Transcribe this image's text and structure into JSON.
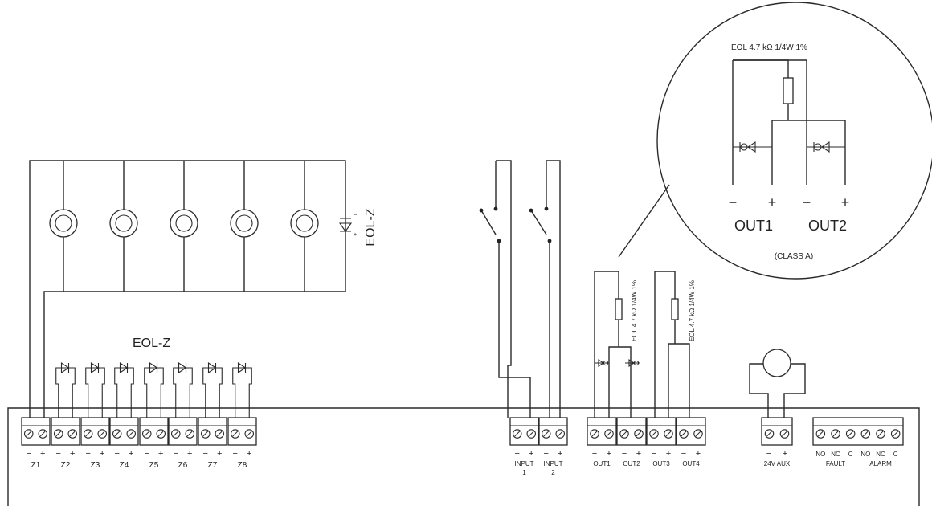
{
  "diagram": {
    "eol_z_top": "EOL-Z",
    "eol_z_bottom": "EOL-Z",
    "minus": "−",
    "plus": "+",
    "zones": [
      "Z1",
      "Z2",
      "Z3",
      "Z4",
      "Z5",
      "Z6",
      "Z7",
      "Z8"
    ],
    "inputs": [
      {
        "line1": "INPUT",
        "line2": "1"
      },
      {
        "line1": "INPUT",
        "line2": "2"
      }
    ],
    "outputs": [
      "OUT1",
      "OUT2",
      "OUT3",
      "OUT4"
    ],
    "eol_out_label": "EOL 4.7 kΩ 1/4W 1%",
    "aux_label": "24V AUX",
    "relay_contacts": [
      "NO",
      "NC",
      "C",
      "NO",
      "NC",
      "C"
    ],
    "relay_groups": [
      "FAULT",
      "ALARM"
    ],
    "inset": {
      "eol_label": "EOL 4.7 kΩ 1/4W 1%",
      "out1": "OUT1",
      "out2": "OUT2",
      "class_label": "(CLASS A)"
    }
  }
}
